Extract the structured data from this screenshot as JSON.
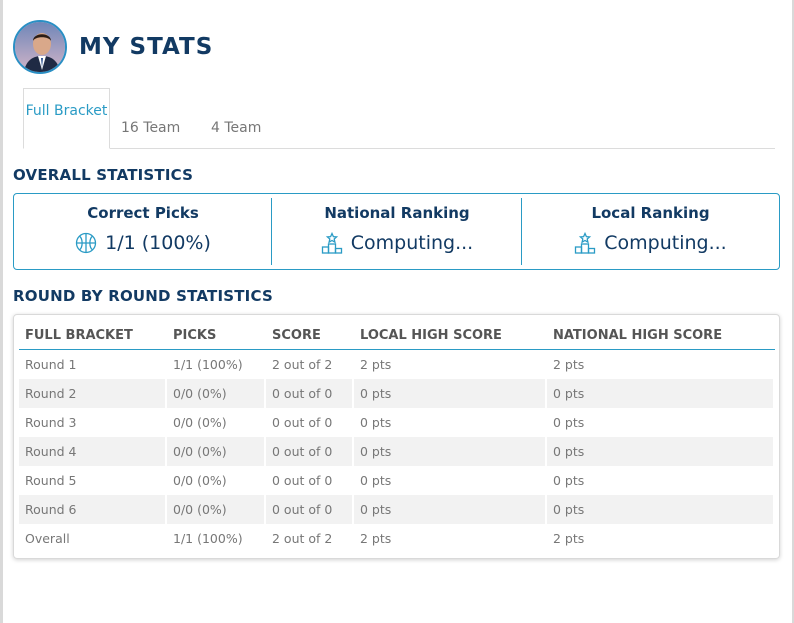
{
  "header": {
    "title": "MY STATS"
  },
  "tabs": [
    {
      "label": "Full Bracket",
      "active": true
    },
    {
      "label": "16 Team",
      "active": false
    },
    {
      "label": "4 Team",
      "active": false
    }
  ],
  "overall": {
    "title": "OVERALL STATISTICS",
    "stats": [
      {
        "label": "Correct Picks",
        "value": "1/1 (100%)",
        "icon": "basketball-icon"
      },
      {
        "label": "National Ranking",
        "value": "Computing...",
        "icon": "podium-icon"
      },
      {
        "label": "Local Ranking",
        "value": "Computing...",
        "icon": "podium-icon"
      }
    ]
  },
  "rounds": {
    "title": "ROUND BY ROUND STATISTICS",
    "columns": [
      "FULL BRACKET",
      "PICKS",
      "SCORE",
      "LOCAL HIGH SCORE",
      "NATIONAL HIGH SCORE"
    ],
    "rows": [
      [
        "Round 1",
        "1/1 (100%)",
        "2 out of 2",
        "2 pts",
        "2 pts"
      ],
      [
        "Round 2",
        "0/0 (0%)",
        "0 out of 0",
        "0 pts",
        "0 pts"
      ],
      [
        "Round 3",
        "0/0 (0%)",
        "0 out of 0",
        "0 pts",
        "0 pts"
      ],
      [
        "Round 4",
        "0/0 (0%)",
        "0 out of 0",
        "0 pts",
        "0 pts"
      ],
      [
        "Round 5",
        "0/0 (0%)",
        "0 out of 0",
        "0 pts",
        "0 pts"
      ],
      [
        "Round 6",
        "0/0 (0%)",
        "0 out of 0",
        "0 pts",
        "0 pts"
      ],
      [
        "Overall",
        "1/1 (100%)",
        "2 out of 2",
        "2 pts",
        "2 pts"
      ]
    ]
  },
  "colors": {
    "accent": "#2a9bc5",
    "title": "#123a63",
    "stripe": "#f2f2f2"
  }
}
